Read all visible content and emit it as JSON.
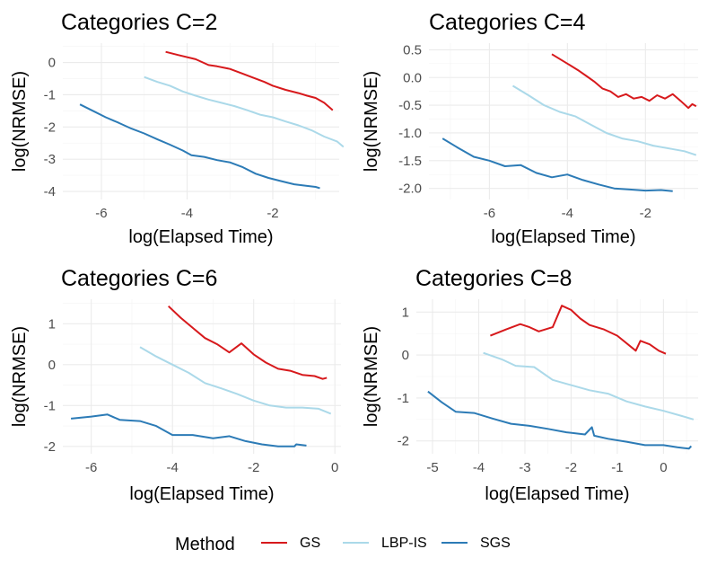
{
  "legend": {
    "title": "Method",
    "entries": [
      {
        "name": "GS",
        "color": "#D7191C"
      },
      {
        "name": "LBP-IS",
        "color": "#ABD9E9"
      },
      {
        "name": "SGS",
        "color": "#2C7BB6"
      }
    ]
  },
  "chart_data": [
    {
      "type": "line",
      "title": "Categories C=2",
      "xlabel": "log(Elapsed Time)",
      "ylabel": "log(NRMSE)",
      "xlim": [
        -6.9,
        -0.45
      ],
      "ylim": [
        -4.25,
        0.6
      ],
      "xticks": [
        -6,
        -4,
        -2
      ],
      "yticks": [
        0,
        -1,
        -2,
        -3,
        -4
      ],
      "xtick_labels": [
        "-6",
        "-4",
        "-2"
      ],
      "ytick_labels": [
        "0",
        "-1",
        "-2",
        "-3",
        "-4"
      ],
      "series": [
        {
          "name": "GS",
          "color": "#D7191C",
          "x": [
            -4.5,
            -4.2,
            -3.8,
            -3.5,
            -3.3,
            -3.0,
            -2.7,
            -2.5,
            -2.2,
            -2.0,
            -1.7,
            -1.4,
            -1.2,
            -1.0,
            -0.8,
            -0.6
          ],
          "y": [
            0.33,
            0.23,
            0.1,
            -0.08,
            -0.12,
            -0.2,
            -0.35,
            -0.45,
            -0.6,
            -0.72,
            -0.85,
            -0.95,
            -1.03,
            -1.1,
            -1.25,
            -1.48
          ]
        },
        {
          "name": "LBP-IS",
          "color": "#ABD9E9",
          "x": [
            -5.0,
            -4.7,
            -4.4,
            -4.1,
            -3.8,
            -3.5,
            -3.2,
            -2.9,
            -2.6,
            -2.3,
            -2.0,
            -1.7,
            -1.4,
            -1.1,
            -0.8,
            -0.5,
            -0.35
          ],
          "y": [
            -0.45,
            -0.6,
            -0.72,
            -0.9,
            -1.03,
            -1.15,
            -1.25,
            -1.35,
            -1.48,
            -1.62,
            -1.7,
            -1.83,
            -1.95,
            -2.1,
            -2.3,
            -2.45,
            -2.62
          ]
        },
        {
          "name": "SGS",
          "color": "#2C7BB6",
          "x": [
            -6.5,
            -6.2,
            -5.9,
            -5.6,
            -5.3,
            -5.0,
            -4.7,
            -4.4,
            -4.1,
            -3.9,
            -3.6,
            -3.3,
            -3.0,
            -2.7,
            -2.4,
            -2.1,
            -1.8,
            -1.5,
            -1.2,
            -1.0,
            -0.9
          ],
          "y": [
            -1.3,
            -1.5,
            -1.7,
            -1.87,
            -2.05,
            -2.2,
            -2.38,
            -2.55,
            -2.73,
            -2.88,
            -2.93,
            -3.03,
            -3.1,
            -3.25,
            -3.45,
            -3.58,
            -3.68,
            -3.78,
            -3.83,
            -3.86,
            -3.9
          ]
        }
      ]
    },
    {
      "type": "line",
      "title": "Categories C=4",
      "xlabel": "log(Elapsed Time)",
      "ylabel": "log(NRMSE)",
      "xlim": [
        -7.55,
        -0.65
      ],
      "ylim": [
        -2.2,
        0.62
      ],
      "xticks": [
        -6,
        -4,
        -2
      ],
      "yticks": [
        0.5,
        0.0,
        -0.5,
        -1.0,
        -1.5,
        -2.0
      ],
      "xtick_labels": [
        "-6",
        "-4",
        "-2"
      ],
      "ytick_labels": [
        "0.5",
        "0.0",
        "-0.5",
        "-1.0",
        "-1.5",
        "-2.0"
      ],
      "series": [
        {
          "name": "GS",
          "color": "#D7191C",
          "x": [
            -4.4,
            -4.0,
            -3.7,
            -3.5,
            -3.3,
            -3.1,
            -2.9,
            -2.7,
            -2.5,
            -2.3,
            -2.1,
            -1.9,
            -1.7,
            -1.5,
            -1.3,
            -1.1,
            -0.9,
            -0.8,
            -0.7
          ],
          "y": [
            0.42,
            0.25,
            0.12,
            0.02,
            -0.08,
            -0.2,
            -0.25,
            -0.35,
            -0.3,
            -0.38,
            -0.35,
            -0.42,
            -0.32,
            -0.38,
            -0.3,
            -0.42,
            -0.55,
            -0.48,
            -0.52
          ]
        },
        {
          "name": "LBP-IS",
          "color": "#ABD9E9",
          "x": [
            -5.4,
            -5.0,
            -4.6,
            -4.2,
            -3.8,
            -3.4,
            -3.0,
            -2.6,
            -2.2,
            -1.8,
            -1.4,
            -1.0,
            -0.7
          ],
          "y": [
            -0.15,
            -0.32,
            -0.5,
            -0.62,
            -0.7,
            -0.85,
            -1.0,
            -1.1,
            -1.15,
            -1.23,
            -1.28,
            -1.33,
            -1.4
          ]
        },
        {
          "name": "SGS",
          "color": "#2C7BB6",
          "x": [
            -7.2,
            -6.8,
            -6.4,
            -6.0,
            -5.6,
            -5.2,
            -4.8,
            -4.4,
            -4.0,
            -3.6,
            -3.2,
            -2.8,
            -2.4,
            -2.0,
            -1.6,
            -1.3
          ],
          "y": [
            -1.1,
            -1.27,
            -1.43,
            -1.5,
            -1.6,
            -1.58,
            -1.72,
            -1.8,
            -1.75,
            -1.85,
            -1.93,
            -2.0,
            -2.02,
            -2.04,
            -2.03,
            -2.05
          ]
        }
      ]
    },
    {
      "type": "line",
      "title": "Categories C=6",
      "xlabel": "log(Elapsed Time)",
      "ylabel": "log(NRMSE)",
      "xlim": [
        -6.7,
        0.15
      ],
      "ylim": [
        -2.18,
        1.6
      ],
      "xticks": [
        -6,
        -4,
        -2,
        0
      ],
      "yticks": [
        1,
        0,
        -1,
        -2
      ],
      "xtick_labels": [
        "-6",
        "-4",
        "-2",
        "0"
      ],
      "ytick_labels": [
        "1",
        "0",
        "-1",
        "-2"
      ],
      "series": [
        {
          "name": "GS",
          "color": "#D7191C",
          "x": [
            -4.1,
            -3.8,
            -3.5,
            -3.2,
            -2.9,
            -2.6,
            -2.3,
            -2.0,
            -1.7,
            -1.4,
            -1.1,
            -0.8,
            -0.5,
            -0.3,
            -0.2
          ],
          "y": [
            1.43,
            1.15,
            0.9,
            0.65,
            0.5,
            0.3,
            0.52,
            0.25,
            0.05,
            -0.1,
            -0.15,
            -0.25,
            -0.28,
            -0.35,
            -0.32
          ]
        },
        {
          "name": "LBP-IS",
          "color": "#ABD9E9",
          "x": [
            -4.8,
            -4.4,
            -4.0,
            -3.6,
            -3.2,
            -2.8,
            -2.4,
            -2.0,
            -1.6,
            -1.2,
            -0.8,
            -0.4,
            -0.1
          ],
          "y": [
            0.43,
            0.2,
            0.0,
            -0.2,
            -0.45,
            -0.58,
            -0.72,
            -0.88,
            -1.0,
            -1.05,
            -1.05,
            -1.08,
            -1.2
          ]
        },
        {
          "name": "SGS",
          "color": "#2C7BB6",
          "x": [
            -6.5,
            -6.0,
            -5.6,
            -5.3,
            -4.8,
            -4.4,
            -4.0,
            -3.5,
            -3.0,
            -2.6,
            -2.2,
            -1.8,
            -1.4,
            -1.0,
            -0.95,
            -0.7
          ],
          "y": [
            -1.32,
            -1.27,
            -1.22,
            -1.35,
            -1.38,
            -1.5,
            -1.72,
            -1.72,
            -1.8,
            -1.75,
            -1.87,
            -1.95,
            -2.0,
            -2.0,
            -1.95,
            -1.98
          ]
        }
      ]
    },
    {
      "type": "line",
      "title": "Categories C=8",
      "xlabel": "log(Elapsed Time)",
      "ylabel": "log(NRMSE)",
      "xlim": [
        -5.35,
        0.75
      ],
      "ylim": [
        -2.3,
        1.3
      ],
      "xticks": [
        -5,
        -4,
        -3,
        -2,
        -1,
        0
      ],
      "yticks": [
        1,
        0,
        -1,
        -2
      ],
      "xtick_labels": [
        "-5",
        "-4",
        "-3",
        "-2",
        "-1",
        "0"
      ],
      "ytick_labels": [
        "1",
        "0",
        "-1",
        "-2"
      ],
      "series": [
        {
          "name": "GS",
          "color": "#D7191C",
          "x": [
            -3.75,
            -3.4,
            -3.1,
            -2.9,
            -2.7,
            -2.4,
            -2.2,
            -2.0,
            -1.8,
            -1.6,
            -1.3,
            -1.0,
            -0.6,
            -0.5,
            -0.3,
            -0.1,
            0.05
          ],
          "y": [
            0.45,
            0.6,
            0.72,
            0.65,
            0.55,
            0.65,
            1.15,
            1.05,
            0.85,
            0.7,
            0.6,
            0.45,
            0.1,
            0.33,
            0.25,
            0.1,
            0.03
          ]
        },
        {
          "name": "LBP-IS",
          "color": "#ABD9E9",
          "x": [
            -3.9,
            -3.5,
            -3.2,
            -2.8,
            -2.4,
            -2.0,
            -1.6,
            -1.2,
            -0.8,
            -0.4,
            0.0,
            0.4,
            0.65
          ],
          "y": [
            0.05,
            -0.1,
            -0.25,
            -0.28,
            -0.58,
            -0.7,
            -0.82,
            -0.9,
            -1.08,
            -1.2,
            -1.3,
            -1.42,
            -1.5
          ]
        },
        {
          "name": "SGS",
          "color": "#2C7BB6",
          "x": [
            -5.1,
            -4.8,
            -4.5,
            -4.1,
            -3.7,
            -3.3,
            -2.9,
            -2.5,
            -2.1,
            -1.7,
            -1.55,
            -1.5,
            -1.2,
            -0.8,
            -0.4,
            0.0,
            0.3,
            0.55,
            0.6
          ],
          "y": [
            -0.85,
            -1.1,
            -1.32,
            -1.35,
            -1.48,
            -1.6,
            -1.65,
            -1.72,
            -1.8,
            -1.85,
            -1.68,
            -1.88,
            -1.95,
            -2.02,
            -2.1,
            -2.1,
            -2.15,
            -2.18,
            -2.12
          ]
        }
      ]
    }
  ]
}
